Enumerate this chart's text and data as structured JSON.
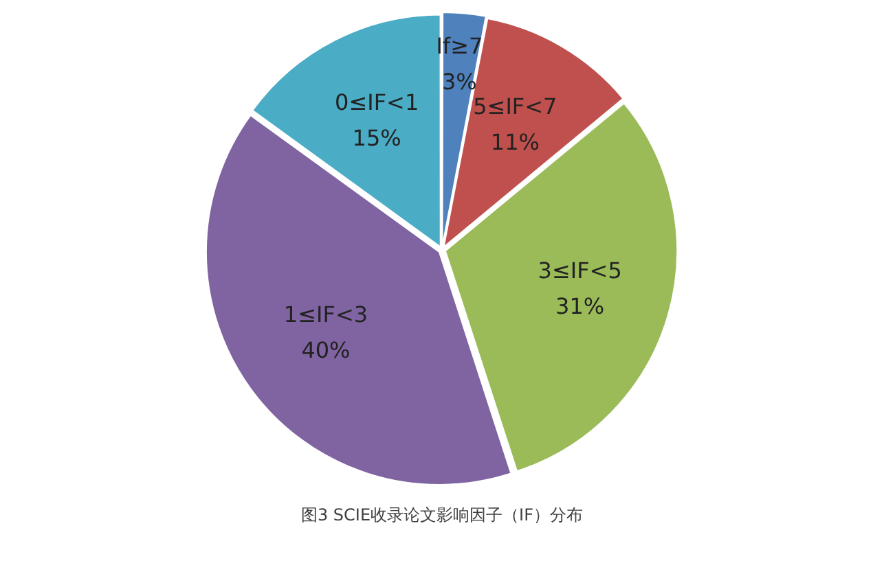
{
  "chart_data": {
    "type": "pie",
    "categories": [
      "If≥7",
      "5≤IF<7",
      "3≤IF<5",
      "1≤IF<3",
      "0≤IF<1"
    ],
    "values": [
      3,
      11,
      31,
      40,
      15
    ],
    "value_labels": [
      "3%",
      "11%",
      "31%",
      "40%",
      "15%"
    ],
    "colors": [
      "#4f81bd",
      "#c0504d",
      "#9bbb59",
      "#8064a2",
      "#4bacc6"
    ],
    "annotations": [
      "图3 SCIE收录论文影响因子（IF）分布"
    ]
  }
}
